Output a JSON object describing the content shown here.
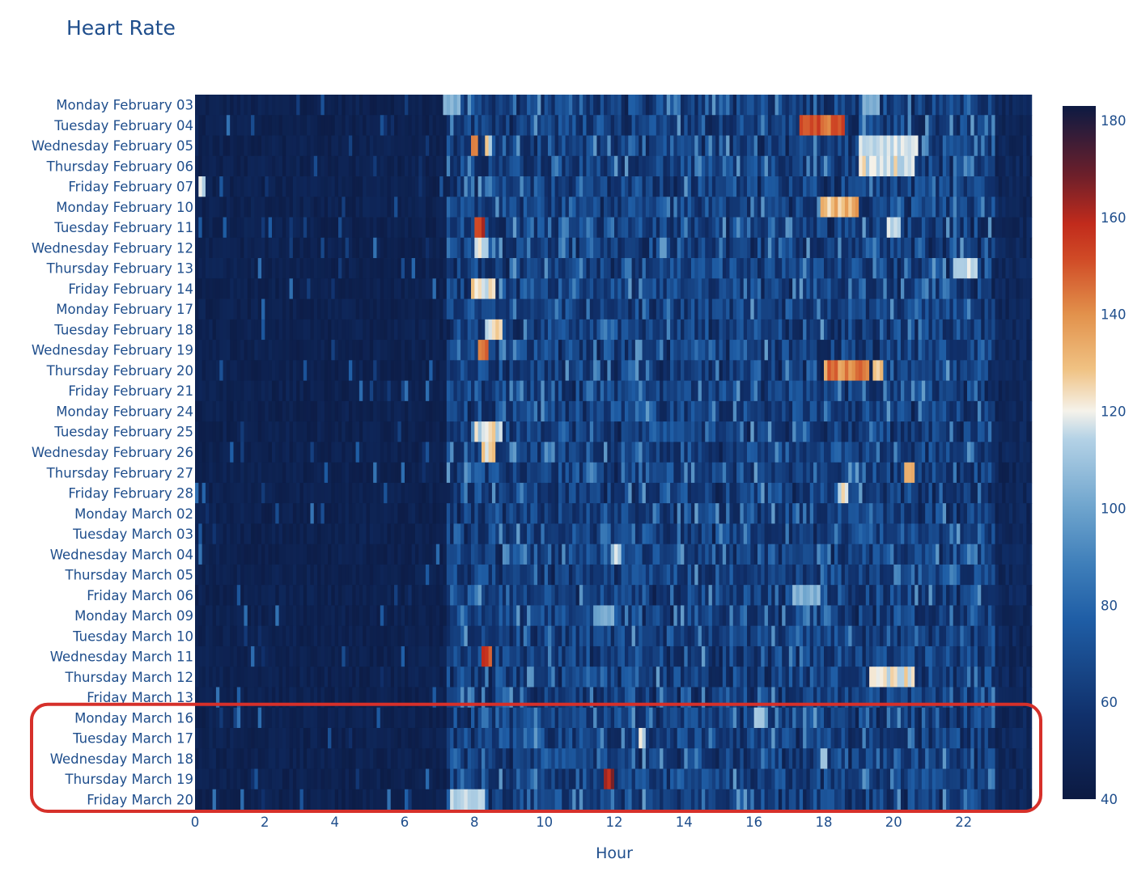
{
  "chart_data": {
    "type": "heatmap",
    "title": "Heart Rate",
    "xlabel": "Hour",
    "ylabel": "",
    "x_range": [
      0,
      24
    ],
    "x_ticks": [
      0,
      2,
      4,
      6,
      8,
      10,
      12,
      14,
      16,
      18,
      20,
      22
    ],
    "y_categories": [
      "Monday February 03",
      "Tuesday February 04",
      "Wednesday February 05",
      "Thursday February 06",
      "Friday February 07",
      "Monday February 10",
      "Tuesday February 11",
      "Wednesday February 12",
      "Thursday February 13",
      "Friday February 14",
      "Monday February 17",
      "Tuesday February 18",
      "Wednesday February 19",
      "Thursday February 20",
      "Friday February 21",
      "Monday February 24",
      "Tuesday February 25",
      "Wednesday February 26",
      "Thursday February 27",
      "Friday February 28",
      "Monday March 02",
      "Tuesday March 03",
      "Wednesday March 04",
      "Thursday March 05",
      "Friday March 06",
      "Monday March 09",
      "Tuesday March 10",
      "Wednesday March 11",
      "Thursday March 12",
      "Friday March 13",
      "Monday March 16",
      "Tuesday March 17",
      "Wednesday March 18",
      "Thursday March 19",
      "Friday March 20"
    ],
    "colorbar": {
      "min": 40,
      "max": 183,
      "ticks": [
        40,
        60,
        80,
        100,
        120,
        140,
        160,
        180
      ],
      "colorscale": [
        [
          0.0,
          "#0c1a42"
        ],
        [
          0.12,
          "#10306b"
        ],
        [
          0.26,
          "#1f5ea6"
        ],
        [
          0.34,
          "#3f7fba"
        ],
        [
          0.42,
          "#6ea4cd"
        ],
        [
          0.52,
          "#b4d2e6"
        ],
        [
          0.56,
          "#f5f2ea"
        ],
        [
          0.62,
          "#f0c283"
        ],
        [
          0.7,
          "#e2914b"
        ],
        [
          0.78,
          "#d04a26"
        ],
        [
          0.83,
          "#c12b1c"
        ],
        [
          0.9,
          "#6d1f2a"
        ],
        [
          1.0,
          "#0c1a42"
        ]
      ]
    },
    "highlight": {
      "rows": [
        "Monday March 16",
        "Tuesday March 17",
        "Wednesday March 18",
        "Thursday March 19",
        "Friday March 20"
      ],
      "color": "#d6302a"
    }
  }
}
